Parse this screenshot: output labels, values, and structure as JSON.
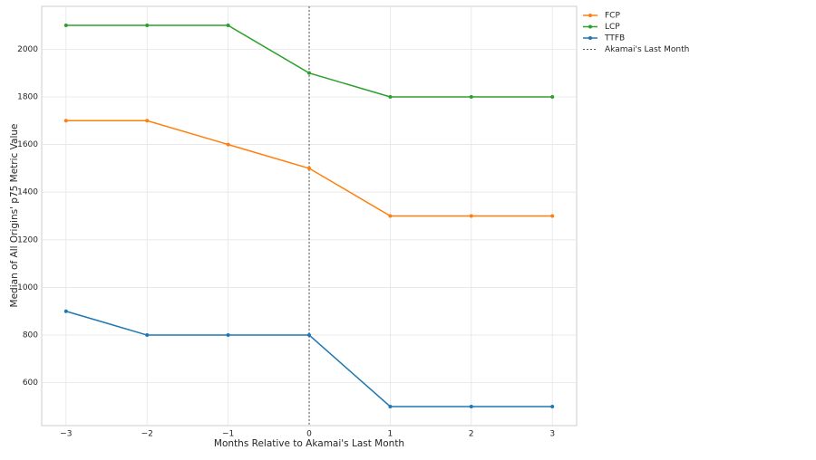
{
  "chart_data": {
    "type": "line",
    "xlabel": "Months Relative to Akamai's Last Month",
    "ylabel": "Median of All Origins' p75 Metric Value",
    "x": [
      -3,
      -2,
      -1,
      0,
      1,
      2,
      3
    ],
    "series": [
      {
        "name": "FCP",
        "color": "#ff7f0e",
        "values": [
          1700,
          1700,
          1600,
          1500,
          1300,
          1300,
          1300
        ]
      },
      {
        "name": "LCP",
        "color": "#2ca02c",
        "values": [
          2100,
          2100,
          2100,
          1900,
          1800,
          1800,
          1800
        ]
      },
      {
        "name": "TTFB",
        "color": "#1f77b4",
        "values": [
          900,
          800,
          800,
          800,
          500,
          500,
          500
        ]
      }
    ],
    "vline": {
      "x": 0,
      "label": "Akamai's Last Month",
      "color": "#555555"
    },
    "xlim": [
      -3.3,
      3.3
    ],
    "xticks": [
      {
        "value": -3,
        "label": "−3"
      },
      {
        "value": -2,
        "label": "−2"
      },
      {
        "value": -1,
        "label": "−1"
      },
      0,
      1,
      2,
      3
    ],
    "ylim": [
      420,
      2180
    ],
    "yticks": [
      600,
      800,
      1000,
      1200,
      1400,
      1600,
      1800,
      2000
    ],
    "grid": true,
    "legend": "outside-right"
  }
}
